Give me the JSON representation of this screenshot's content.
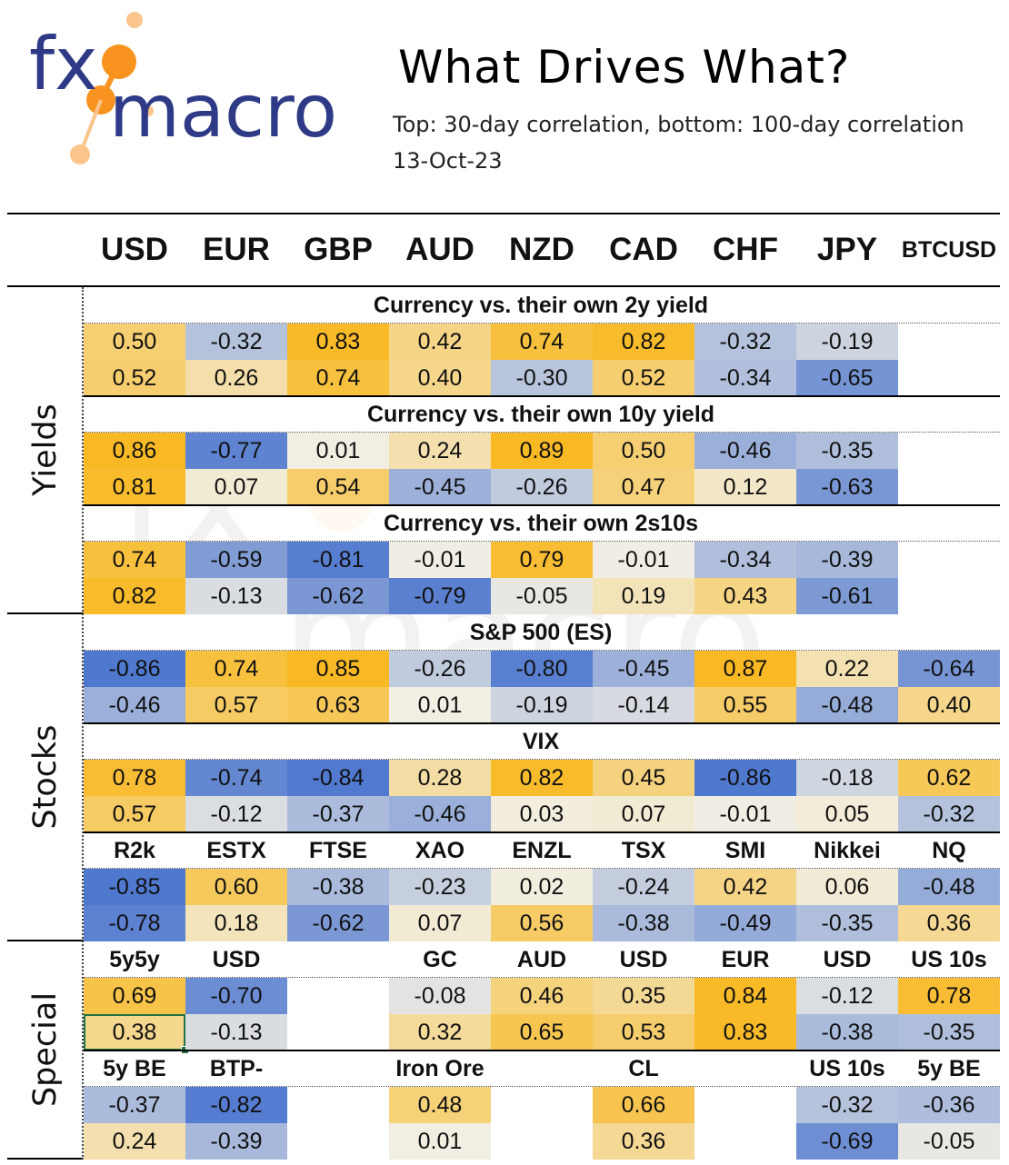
{
  "logo": {
    "text_fx": "fx",
    "text_macro": "macro",
    "colors": {
      "letters": "#2e3a86",
      "dots": "#f7931e",
      "dots_light": "#fbc58c"
    }
  },
  "title": "What Drives What?",
  "subtitle": "Top: 30-day correlation, bottom: 100-day correlation",
  "date": "13-Oct-23",
  "columns": [
    "USD",
    "EUR",
    "GBP",
    "AUD",
    "NZD",
    "CAD",
    "CHF",
    "JPY",
    "BTCUSD"
  ],
  "sections": [
    {
      "label": "Yields",
      "blocks": [
        {
          "title": "Currency vs. their own 2y yield",
          "top": [
            "0.50",
            "-0.32",
            "0.83",
            "0.42",
            "0.74",
            "0.82",
            "-0.32",
            "-0.19",
            ""
          ],
          "bottom": [
            "0.52",
            "0.26",
            "0.74",
            "0.40",
            "-0.30",
            "0.52",
            "-0.34",
            "-0.65",
            ""
          ]
        },
        {
          "title": "Currency vs. their own 10y yield",
          "top": [
            "0.86",
            "-0.77",
            "0.01",
            "0.24",
            "0.89",
            "0.50",
            "-0.46",
            "-0.35",
            ""
          ],
          "bottom": [
            "0.81",
            "0.07",
            "0.54",
            "-0.45",
            "-0.26",
            "0.47",
            "0.12",
            "-0.63",
            ""
          ]
        },
        {
          "title": "Currency vs. their own 2s10s",
          "top": [
            "0.74",
            "-0.59",
            "-0.81",
            "-0.01",
            "0.79",
            "-0.01",
            "-0.34",
            "-0.39",
            ""
          ],
          "bottom": [
            "0.82",
            "-0.13",
            "-0.62",
            "-0.79",
            "-0.05",
            "0.19",
            "0.43",
            "-0.61",
            ""
          ]
        }
      ]
    },
    {
      "label": "Stocks",
      "blocks": [
        {
          "title": "S&P 500 (ES)",
          "top": [
            "-0.86",
            "0.74",
            "0.85",
            "-0.26",
            "-0.80",
            "-0.45",
            "0.87",
            "0.22",
            "-0.64"
          ],
          "bottom": [
            "-0.46",
            "0.57",
            "0.63",
            "0.01",
            "-0.19",
            "-0.14",
            "0.55",
            "-0.48",
            "0.40"
          ]
        },
        {
          "title": "VIX",
          "top": [
            "0.78",
            "-0.74",
            "-0.84",
            "0.28",
            "0.82",
            "0.45",
            "-0.86",
            "-0.18",
            "0.62"
          ],
          "bottom": [
            "0.57",
            "-0.12",
            "-0.37",
            "-0.46",
            "0.03",
            "0.07",
            "-0.01",
            "0.05",
            "-0.32"
          ]
        },
        {
          "labels": [
            "R2k",
            "ESTX",
            "FTSE",
            "XAO",
            "ENZL",
            "TSX",
            "SMI",
            "Nikkei",
            "NQ"
          ],
          "top": [
            "-0.85",
            "0.60",
            "-0.38",
            "-0.23",
            "0.02",
            "-0.24",
            "0.42",
            "0.06",
            "-0.48"
          ],
          "bottom": [
            "-0.78",
            "0.18",
            "-0.62",
            "0.07",
            "0.56",
            "-0.38",
            "-0.49",
            "-0.35",
            "0.36"
          ]
        }
      ]
    },
    {
      "label": "Special",
      "blocks": [
        {
          "labels": [
            "5y5y",
            "USD",
            "",
            "GC",
            "AUD",
            "USD",
            "EUR",
            "USD",
            "US 10s"
          ],
          "top": [
            "0.69",
            "-0.70",
            "",
            "-0.08",
            "0.46",
            "0.35",
            "0.84",
            "-0.12",
            "0.78"
          ],
          "bottom": [
            "0.38",
            "-0.13",
            "",
            "0.32",
            "0.65",
            "0.53",
            "0.83",
            "-0.38",
            "-0.35"
          ]
        },
        {
          "labels": [
            "5y BE",
            "BTP-BND",
            "",
            "Iron Ore",
            "",
            "CL",
            "",
            "US 10s",
            "5y BE"
          ],
          "top": [
            "-0.37",
            "-0.82",
            "",
            "0.48",
            "",
            "0.66",
            "",
            "-0.32",
            "-0.36"
          ],
          "bottom": [
            "0.24",
            "-0.39",
            "",
            "0.01",
            "",
            "0.36",
            "",
            "-0.69",
            "-0.05"
          ]
        }
      ]
    }
  ],
  "color_scale": {
    "positive": "#f8b924",
    "neutral": "#f2efe4",
    "negative": "#4f78cf",
    "blank": "#ffffff"
  },
  "selected_cell": {
    "section": 2,
    "block": 0,
    "row": "bottom",
    "col": 0
  }
}
